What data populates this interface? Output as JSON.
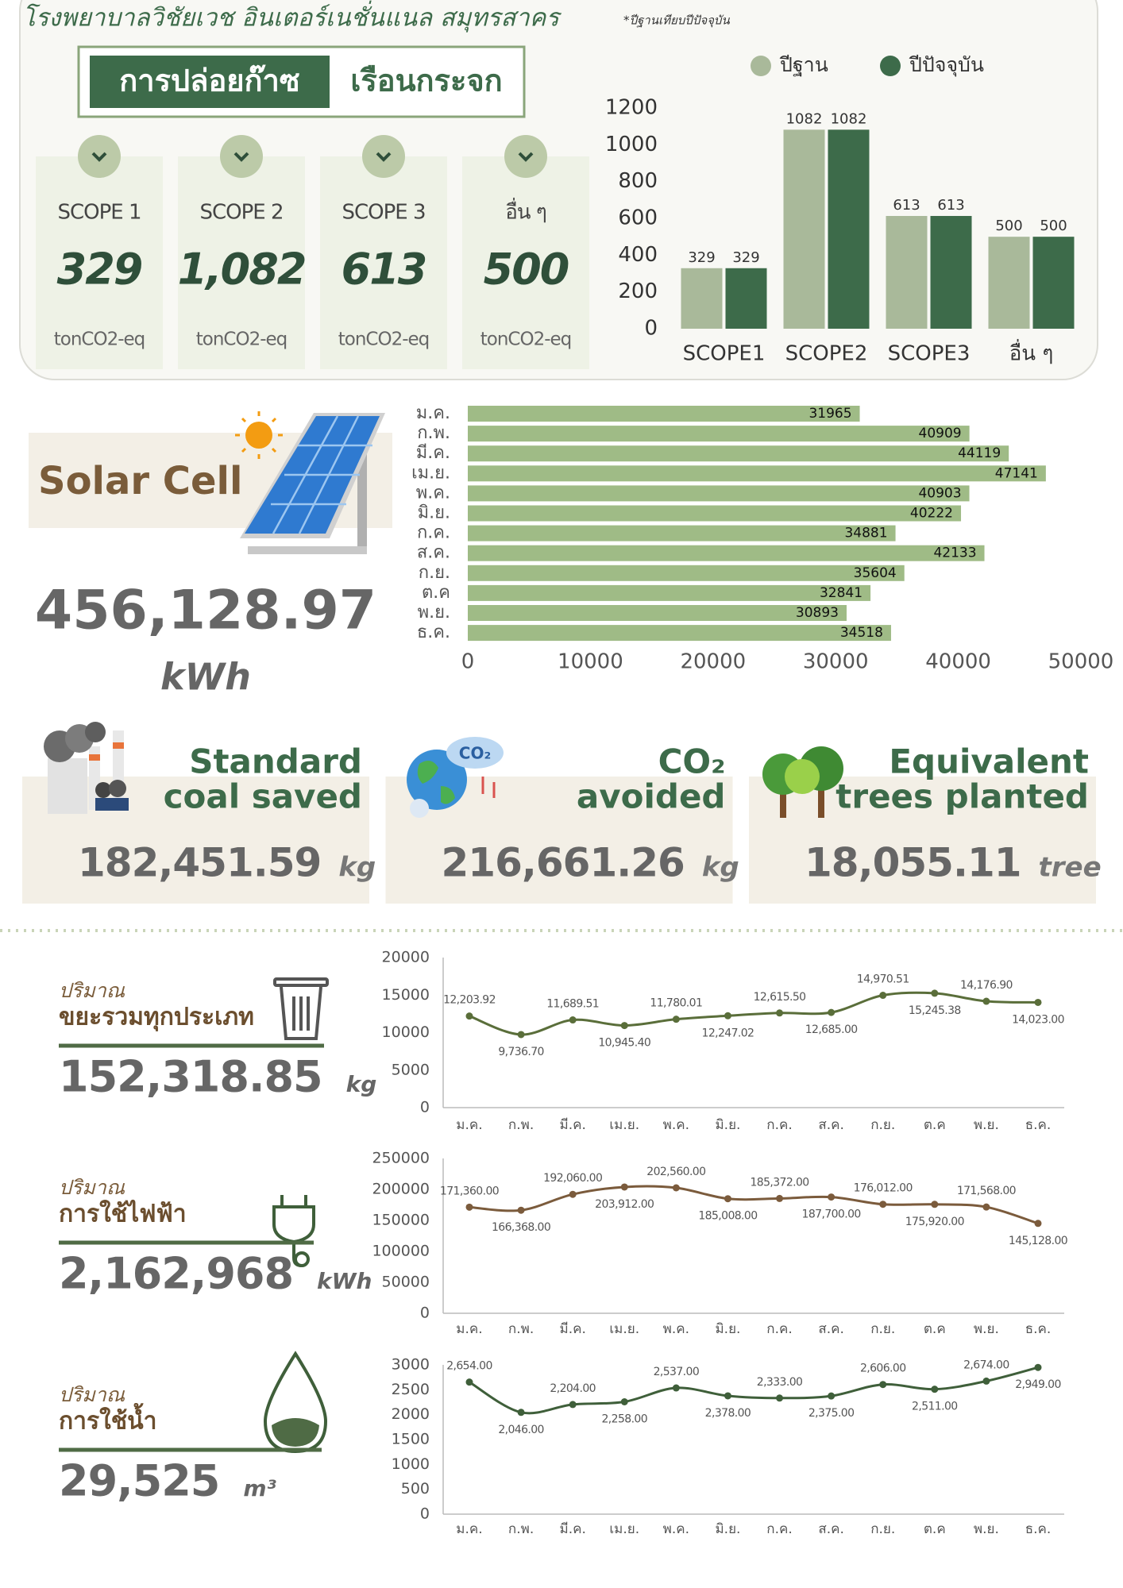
{
  "header": {
    "title": "โรงพยาบาลวิชัยเวช อินเตอร์เนชั่นแนล สมุทรสาคร",
    "note": "*ปีฐานเทียบปีปัจจุบัน"
  },
  "ghg": {
    "title_part1": "การปล่อยก๊าซ",
    "title_part2": "เรือนกระจก",
    "cards": [
      {
        "label": "SCOPE 1",
        "value": "329",
        "unit": "tonCO2-eq"
      },
      {
        "label": "SCOPE 2",
        "value": "1,082",
        "unit": "tonCO2-eq"
      },
      {
        "label": "SCOPE 3",
        "value": "613",
        "unit": "tonCO2-eq"
      },
      {
        "label": "อื่น ๆ",
        "value": "500",
        "unit": "tonCO2-eq"
      }
    ]
  },
  "solar": {
    "title": "Solar Cell",
    "value": "456,128.97",
    "unit": "kWh"
  },
  "stats": [
    {
      "title_lines": [
        "Standard",
        "coal saved"
      ],
      "value": "182,451.59",
      "unit": "kg"
    },
    {
      "title_lines": [
        "CO₂",
        "avoided"
      ],
      "value": "216,661.26",
      "unit": "kg"
    },
    {
      "title_lines": [
        "Equivalent",
        "trees planted"
      ],
      "value": "18,055.11",
      "unit": "tree"
    }
  ],
  "usage": [
    {
      "label": "ปริมาณ",
      "title": "ขยะรวมทุกประเภท",
      "value": "152,318.85",
      "unit": "kg"
    },
    {
      "label": "ปริมาณ",
      "title": "การใช้ไฟฟ้า",
      "value": "2,162,968",
      "unit": "kWh"
    },
    {
      "label": "ปริมาณ",
      "title": "การใช้น้ำ",
      "value": "29,525",
      "unit": "m³"
    }
  ],
  "chart_data": [
    {
      "type": "bar",
      "categories": [
        "SCOPE1",
        "SCOPE2",
        "SCOPE3",
        "อื่น ๆ"
      ],
      "series": [
        {
          "name": "ปีฐาน",
          "color": "#a9b99a",
          "values": [
            329,
            1082,
            613,
            500
          ]
        },
        {
          "name": "ปีปัจจุบัน",
          "color": "#3d6b4a",
          "values": [
            329,
            1082,
            613,
            500
          ]
        }
      ],
      "ylim": [
        0,
        1200
      ],
      "yticks": [
        0,
        200,
        400,
        600,
        800,
        1000,
        1200
      ],
      "grid": false,
      "legend": "top"
    },
    {
      "type": "barh",
      "categories": [
        "ม.ค.",
        "ก.พ.",
        "มี.ค.",
        "เม.ย.",
        "พ.ค.",
        "มิ.ย.",
        "ก.ค.",
        "ส.ค.",
        "ก.ย.",
        "ต.ค",
        "พ.ย.",
        "ธ.ค."
      ],
      "values": [
        31965,
        40909,
        44119,
        47141,
        40903,
        40222,
        34881,
        42133,
        35604,
        32841,
        30893,
        34518
      ],
      "color": "#9fbb86",
      "xlim": [
        0,
        50000
      ],
      "xticks": [
        0,
        10000,
        20000,
        30000,
        40000,
        50000
      ],
      "grid": false
    },
    {
      "type": "line",
      "categories": [
        "ม.ค.",
        "ก.พ.",
        "มี.ค.",
        "เม.ย.",
        "พ.ค.",
        "มิ.ย.",
        "ก.ค.",
        "ส.ค.",
        "ก.ย.",
        "ต.ค",
        "พ.ย.",
        "ธ.ค."
      ],
      "values": [
        12203.92,
        9736.7,
        11689.51,
        10945.4,
        11780.01,
        12247.02,
        12615.5,
        12685.0,
        14970.51,
        15245.38,
        14176.9,
        14023.0
      ],
      "value_labels": [
        "12,203.92",
        "9,736.70",
        "11,689.51",
        "10,945.40",
        "11,780.01",
        "12,247.02",
        "12,615.50",
        "12,685.00",
        "14,970.51",
        "15,245.38",
        "14,176.90",
        "14,023.00"
      ],
      "color": "#5a6e3a",
      "ylim": [
        0,
        20000
      ],
      "yticks": [
        0,
        5000,
        10000,
        15000,
        20000
      ],
      "grid": false
    },
    {
      "type": "line",
      "categories": [
        "ม.ค.",
        "ก.พ.",
        "มี.ค.",
        "เม.ย.",
        "พ.ค.",
        "มิ.ย.",
        "ก.ค.",
        "ส.ค.",
        "ก.ย.",
        "ต.ค",
        "พ.ย.",
        "ธ.ค."
      ],
      "values": [
        171360,
        166368,
        192060,
        203912,
        202560,
        185008,
        185372,
        187700,
        176012,
        175920,
        171568,
        145128
      ],
      "value_labels": [
        "171,360.00",
        "166,368.00",
        "192,060.00",
        "203,912.00",
        "202,560.00",
        "185,008.00",
        "185,372.00",
        "187,700.00",
        "176,012.00",
        "175,920.00",
        "171,568.00",
        "145,128.00"
      ],
      "color": "#7b5b3c",
      "ylim": [
        0,
        250000
      ],
      "yticks": [
        0,
        50000,
        100000,
        150000,
        200000,
        250000
      ],
      "grid": false
    },
    {
      "type": "line",
      "categories": [
        "ม.ค.",
        "ก.พ.",
        "มี.ค.",
        "เม.ย.",
        "พ.ค.",
        "มิ.ย.",
        "ก.ค.",
        "ส.ค.",
        "ก.ย.",
        "ต.ค",
        "พ.ย.",
        "ธ.ค."
      ],
      "values": [
        2654,
        2046,
        2204,
        2258,
        2537,
        2378,
        2333,
        2375,
        2606,
        2511,
        2674,
        2949
      ],
      "value_labels": [
        "2,654.00",
        "2,046.00",
        "2,204.00",
        "2,258.00",
        "2,537.00",
        "2,378.00",
        "2,333.00",
        "2,375.00",
        "2,606.00",
        "2,511.00",
        "2,674.00",
        "2,949.00"
      ],
      "color": "#3f5f3a",
      "ylim": [
        0,
        3000
      ],
      "yticks": [
        0,
        500,
        1000,
        1500,
        2000,
        2500,
        3000
      ],
      "grid": false
    }
  ]
}
